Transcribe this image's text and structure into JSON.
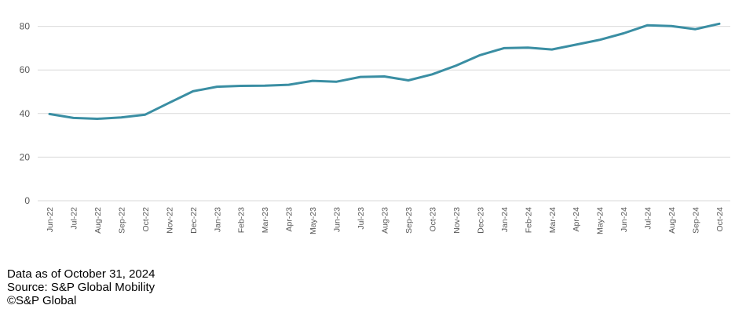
{
  "chart_data": {
    "type": "line",
    "x": [
      "Jun-22",
      "Jul-22",
      "Aug-22",
      "Sep-22",
      "Oct-22",
      "Nov-22",
      "Dec-22",
      "Jan-23",
      "Feb-23",
      "Mar-23",
      "Apr-23",
      "May-23",
      "Jun-23",
      "Jul-23",
      "Aug-23",
      "Sep-23",
      "Oct-23",
      "Nov-23",
      "Dec-23",
      "Jan-24",
      "Feb-24",
      "Mar-24",
      "Apr-24",
      "May-24",
      "Jun-24",
      "Jul-24",
      "Aug-24",
      "Sep-24",
      "Oct-24"
    ],
    "series": [
      {
        "values": [
          39.8,
          38.0,
          37.6,
          38.2,
          39.5,
          44.9,
          50.2,
          52.3,
          52.7,
          52.8,
          53.2,
          55.0,
          54.6,
          56.8,
          57.0,
          55.2,
          58.0,
          62.0,
          66.8,
          70.0,
          70.2,
          69.4,
          71.6,
          73.8,
          76.8,
          80.5,
          80.1,
          78.7,
          81.2
        ]
      }
    ],
    "yticks": [
      0,
      20,
      40,
      60,
      80
    ],
    "ylim": [
      0,
      84
    ],
    "grid": true,
    "line_color": "#3a8ea3",
    "grid_color": "#d9d9d9"
  },
  "footnotes": {
    "as_of": "Data as of October 31, 2024",
    "source": "Source: S&P Global Mobility",
    "copyright": "©S&P Global"
  }
}
